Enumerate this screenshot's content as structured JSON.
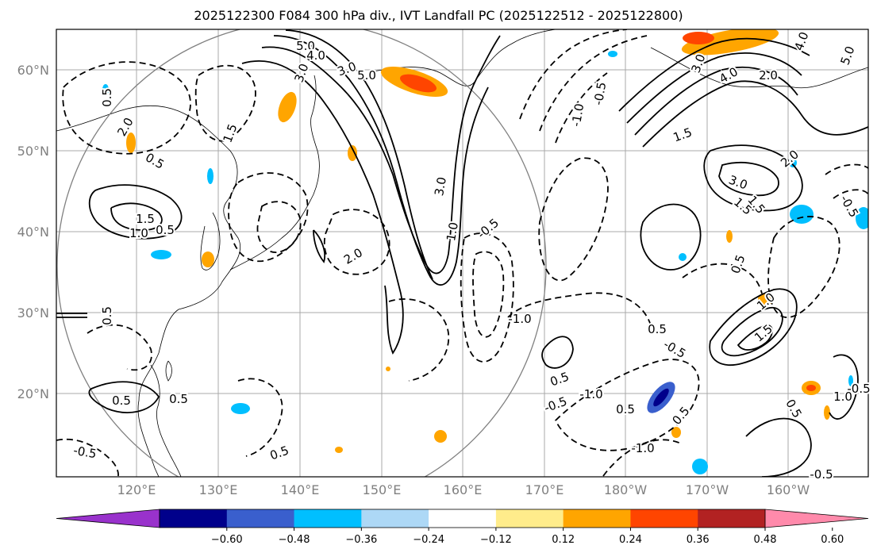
{
  "title": "2025122300 F084 300 hPa div., IVT Landfall PC (2025122512 - 2025122800)",
  "map": {
    "lat_labels": [
      "60°N",
      "50°N",
      "40°N",
      "30°N",
      "20°N"
    ],
    "lon_labels": [
      "120°E",
      "130°E",
      "140°E",
      "150°E",
      "160°E",
      "170°E",
      "180°W",
      "170°W",
      "160°W"
    ],
    "grid_color": "#a9a9a9",
    "contour_labels": [
      {
        "text": "5.0"
      },
      {
        "text": "4.0"
      },
      {
        "text": "5.0"
      },
      {
        "text": "3.0"
      },
      {
        "text": "2.0"
      },
      {
        "text": "3.0"
      },
      {
        "text": "1.5"
      },
      {
        "text": "0.5"
      },
      {
        "text": "1.5"
      },
      {
        "text": "1.0"
      },
      {
        "text": "0.5"
      },
      {
        "text": "3.0"
      },
      {
        "text": "1.0"
      },
      {
        "text": "-0.5"
      },
      {
        "text": "2.0"
      },
      {
        "text": "0.5"
      },
      {
        "text": "0.5"
      },
      {
        "text": "0.5"
      },
      {
        "text": "0.5"
      },
      {
        "text": "-0.5"
      },
      {
        "text": "-1.0"
      },
      {
        "text": "0.5"
      },
      {
        "text": "-0.5"
      },
      {
        "text": "-1.0"
      },
      {
        "text": "0.5"
      },
      {
        "text": "0.5"
      },
      {
        "text": "-1.0"
      },
      {
        "text": "-0.5"
      },
      {
        "text": "1.0"
      },
      {
        "text": "0.5"
      },
      {
        "text": "-0.5"
      },
      {
        "text": "1.5"
      },
      {
        "text": "3.0"
      },
      {
        "text": "4.0"
      },
      {
        "text": "2.0"
      },
      {
        "text": "1.5"
      },
      {
        "text": "3.0"
      },
      {
        "text": "2.0"
      },
      {
        "text": "1.5"
      },
      {
        "text": "0.5"
      },
      {
        "text": "1.0"
      },
      {
        "text": "1.5"
      },
      {
        "text": "0.5"
      },
      {
        "text": "-0.5"
      },
      {
        "text": "-0.5"
      },
      {
        "text": "0.5"
      },
      {
        "text": "-1.0"
      },
      {
        "text": "-0.5"
      },
      {
        "text": "4.0"
      },
      {
        "text": "5.0"
      }
    ]
  },
  "colorbar": {
    "colors": [
      "#9932cc",
      "#00008b",
      "#3a5fcd",
      "#00bfff",
      "#add8f6",
      "#ffffff",
      "#ffec8b",
      "#ffa500",
      "#ff4500",
      "#b22222",
      "#ff8aab"
    ],
    "ticks": [
      "−0.60",
      "−0.48",
      "−0.36",
      "−0.24",
      "−0.12",
      "0.12",
      "0.24",
      "0.36",
      "0.48",
      "0.60"
    ]
  }
}
